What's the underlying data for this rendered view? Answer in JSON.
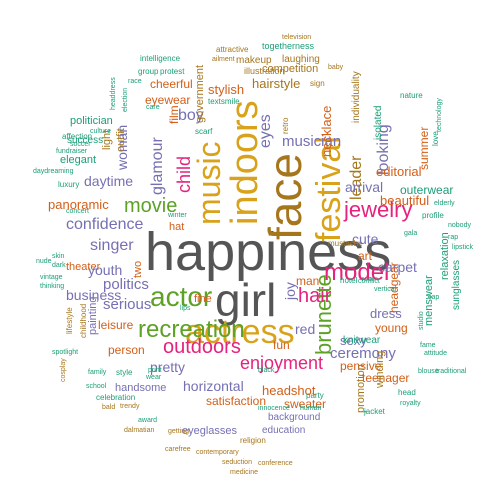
{
  "palette": {
    "grey": "#555555",
    "gold": "#D8A21A",
    "green": "#5DA227",
    "pink": "#E5237E",
    "purple": "#7570B3",
    "orange": "#D35F18",
    "teal": "#1B9E77",
    "brown": "#A6761D"
  },
  "words": [
    {
      "text": "happiness",
      "color": "grey"
    },
    {
      "text": "girl",
      "color": "grey"
    },
    {
      "text": "face",
      "color": "brown"
    },
    {
      "text": "actress",
      "color": "gold"
    },
    {
      "text": "indoors",
      "color": "gold"
    },
    {
      "text": "festival",
      "color": "gold"
    },
    {
      "text": "music",
      "color": "gold"
    },
    {
      "text": "actor",
      "color": "green"
    },
    {
      "text": "recreation",
      "color": "green"
    },
    {
      "text": "brunette",
      "color": "green"
    },
    {
      "text": "model",
      "color": "pink"
    },
    {
      "text": "jewelry",
      "color": "pink"
    },
    {
      "text": "outdoors",
      "color": "pink"
    },
    {
      "text": "hair",
      "color": "pink"
    },
    {
      "text": "enjoyment",
      "color": "pink"
    },
    {
      "text": "child",
      "color": "pink"
    },
    {
      "text": "movie",
      "color": "green"
    },
    {
      "text": "glamour",
      "color": "purple"
    },
    {
      "text": "confidence",
      "color": "purple"
    },
    {
      "text": "singer",
      "color": "purple"
    },
    {
      "text": "politics",
      "color": "purple"
    },
    {
      "text": "serious",
      "color": "purple"
    },
    {
      "text": "business",
      "color": "purple"
    },
    {
      "text": "ceremony",
      "color": "purple"
    },
    {
      "text": "eyes",
      "color": "purple"
    },
    {
      "text": "looking",
      "color": "purple"
    },
    {
      "text": "leader",
      "color": "brown"
    },
    {
      "text": "musician",
      "color": "purple"
    },
    {
      "text": "boy",
      "color": "purple"
    },
    {
      "text": "woman",
      "color": "purple"
    },
    {
      "text": "daytime",
      "color": "purple"
    },
    {
      "text": "youth",
      "color": "purple"
    },
    {
      "text": "cute",
      "color": "purple"
    },
    {
      "text": "carpet",
      "color": "purple"
    },
    {
      "text": "arrival",
      "color": "purple"
    },
    {
      "text": "editorial",
      "color": "orange"
    },
    {
      "text": "beautiful",
      "color": "orange"
    },
    {
      "text": "necklace",
      "color": "orange"
    },
    {
      "text": "hairstyle",
      "color": "brown"
    },
    {
      "text": "stylish",
      "color": "orange"
    },
    {
      "text": "cheerful",
      "color": "orange"
    },
    {
      "text": "panoramic",
      "color": "orange"
    },
    {
      "text": "horizontal",
      "color": "purple"
    },
    {
      "text": "pretty",
      "color": "purple"
    },
    {
      "text": "red",
      "color": "purple"
    },
    {
      "text": "sexy",
      "color": "purple"
    },
    {
      "text": "dress",
      "color": "purple"
    },
    {
      "text": "fun",
      "color": "orange"
    },
    {
      "text": "headgear",
      "color": "orange"
    },
    {
      "text": "young",
      "color": "orange"
    },
    {
      "text": "headshot",
      "color": "orange"
    },
    {
      "text": "satisfaction",
      "color": "orange"
    },
    {
      "text": "leisure",
      "color": "orange"
    },
    {
      "text": "person",
      "color": "orange"
    },
    {
      "text": "sweater",
      "color": "orange"
    },
    {
      "text": "pensive",
      "color": "orange"
    },
    {
      "text": "teenager",
      "color": "orange"
    },
    {
      "text": "summer",
      "color": "orange"
    },
    {
      "text": "competition",
      "color": "brown"
    },
    {
      "text": "makeup",
      "color": "brown"
    },
    {
      "text": "eyewear",
      "color": "orange"
    },
    {
      "text": "outerwear",
      "color": "teal"
    },
    {
      "text": "relaxation",
      "color": "teal"
    },
    {
      "text": "menswear",
      "color": "teal"
    },
    {
      "text": "sunglasses",
      "color": "teal"
    },
    {
      "text": "knitwear",
      "color": "teal"
    },
    {
      "text": "joy",
      "color": "purple"
    },
    {
      "text": "man",
      "color": "orange"
    },
    {
      "text": "art",
      "color": "orange"
    },
    {
      "text": "film",
      "color": "orange"
    },
    {
      "text": "hat",
      "color": "orange"
    },
    {
      "text": "two",
      "color": "orange"
    },
    {
      "text": "fine",
      "color": "orange"
    },
    {
      "text": "government",
      "color": "brown"
    },
    {
      "text": "light",
      "color": "brown"
    },
    {
      "text": "outfit",
      "color": "brown"
    },
    {
      "text": "elegant",
      "color": "teal"
    },
    {
      "text": "politician",
      "color": "teal"
    },
    {
      "text": "success",
      "color": "teal"
    },
    {
      "text": "theater",
      "color": "orange"
    },
    {
      "text": "painting",
      "color": "purple"
    },
    {
      "text": "handsome",
      "color": "purple"
    },
    {
      "text": "eyeglasses",
      "color": "purple"
    },
    {
      "text": "education",
      "color": "purple"
    },
    {
      "text": "background",
      "color": "purple"
    },
    {
      "text": "promotion",
      "color": "brown"
    },
    {
      "text": "winding",
      "color": "brown"
    },
    {
      "text": "isolated",
      "color": "teal"
    },
    {
      "text": "individuality",
      "color": "brown"
    },
    {
      "text": "laughing",
      "color": "brown"
    },
    {
      "text": "illustration",
      "color": "brown"
    },
    {
      "text": "togetherness",
      "color": "teal"
    },
    {
      "text": "attractive",
      "color": "brown"
    },
    {
      "text": "television",
      "color": "brown"
    },
    {
      "text": "intelligence",
      "color": "teal"
    },
    {
      "text": "group",
      "color": "teal"
    },
    {
      "text": "protest",
      "color": "teal"
    },
    {
      "text": "affection",
      "color": "teal"
    },
    {
      "text": "fundraiser",
      "color": "teal"
    },
    {
      "text": "daydreaming",
      "color": "teal"
    },
    {
      "text": "luxury",
      "color": "teal"
    },
    {
      "text": "culture",
      "color": "teal"
    },
    {
      "text": "scarf",
      "color": "teal"
    },
    {
      "text": "textsmile",
      "color": "teal"
    },
    {
      "text": "sign",
      "color": "brown"
    },
    {
      "text": "nature",
      "color": "teal"
    },
    {
      "text": "technology",
      "color": "teal"
    },
    {
      "text": "profile",
      "color": "teal"
    },
    {
      "text": "elderly",
      "color": "teal"
    },
    {
      "text": "lipstick",
      "color": "teal"
    },
    {
      "text": "gala",
      "color": "teal"
    },
    {
      "text": "celebration",
      "color": "teal"
    },
    {
      "text": "award",
      "color": "teal"
    },
    {
      "text": "innocence",
      "color": "teal"
    },
    {
      "text": "human",
      "color": "teal"
    },
    {
      "text": "jacket",
      "color": "teal"
    },
    {
      "text": "conflict",
      "color": "teal"
    },
    {
      "text": "religion",
      "color": "brown"
    },
    {
      "text": "contemporary",
      "color": "brown"
    },
    {
      "text": "seduction",
      "color": "brown"
    },
    {
      "text": "conference",
      "color": "brown"
    },
    {
      "text": "medicine",
      "color": "brown"
    },
    {
      "text": "carefree",
      "color": "brown"
    },
    {
      "text": "getting",
      "color": "brown"
    },
    {
      "text": "dalmatian",
      "color": "brown"
    },
    {
      "text": "bald",
      "color": "brown"
    },
    {
      "text": "trendy",
      "color": "brown"
    },
    {
      "text": "school",
      "color": "teal"
    },
    {
      "text": "family",
      "color": "teal"
    },
    {
      "text": "style",
      "color": "teal"
    },
    {
      "text": "spotlight",
      "color": "teal"
    },
    {
      "text": "print",
      "color": "teal"
    },
    {
      "text": "nude",
      "color": "teal"
    },
    {
      "text": "skin",
      "color": "teal"
    },
    {
      "text": "dark",
      "color": "teal"
    },
    {
      "text": "vintage",
      "color": "teal"
    },
    {
      "text": "thinking",
      "color": "teal"
    },
    {
      "text": "concert",
      "color": "teal"
    },
    {
      "text": "winter",
      "color": "teal"
    },
    {
      "text": "lips",
      "color": "teal"
    },
    {
      "text": "party",
      "color": "teal"
    },
    {
      "text": "hotel",
      "color": "teal"
    },
    {
      "text": "room",
      "color": "teal"
    },
    {
      "text": "vertical",
      "color": "teal"
    },
    {
      "text": "mustache",
      "color": "brown"
    },
    {
      "text": "cap",
      "color": "teal"
    },
    {
      "text": "fame",
      "color": "teal"
    },
    {
      "text": "blouse",
      "color": "teal"
    },
    {
      "text": "traditional",
      "color": "teal"
    },
    {
      "text": "attitude",
      "color": "teal"
    },
    {
      "text": "head",
      "color": "teal"
    },
    {
      "text": "rap",
      "color": "teal"
    },
    {
      "text": "nobody",
      "color": "teal"
    },
    {
      "text": "love",
      "color": "teal"
    },
    {
      "text": "black",
      "color": "teal"
    },
    {
      "text": "wear",
      "color": "teal"
    },
    {
      "text": "soccer",
      "color": "teal"
    },
    {
      "text": "care",
      "color": "teal"
    },
    {
      "text": "race",
      "color": "teal"
    },
    {
      "text": "baby",
      "color": "brown"
    },
    {
      "text": "ailment",
      "color": "brown"
    },
    {
      "text": "election",
      "color": "teal"
    },
    {
      "text": "headdress",
      "color": "teal"
    },
    {
      "text": "childhood",
      "color": "brown"
    },
    {
      "text": "lifestyle",
      "color": "brown"
    },
    {
      "text": "retro",
      "color": "brown"
    },
    {
      "text": "royalty",
      "color": "teal"
    },
    {
      "text": "studio",
      "color": "teal"
    },
    {
      "text": "cosplay",
      "color": "brown"
    }
  ]
}
